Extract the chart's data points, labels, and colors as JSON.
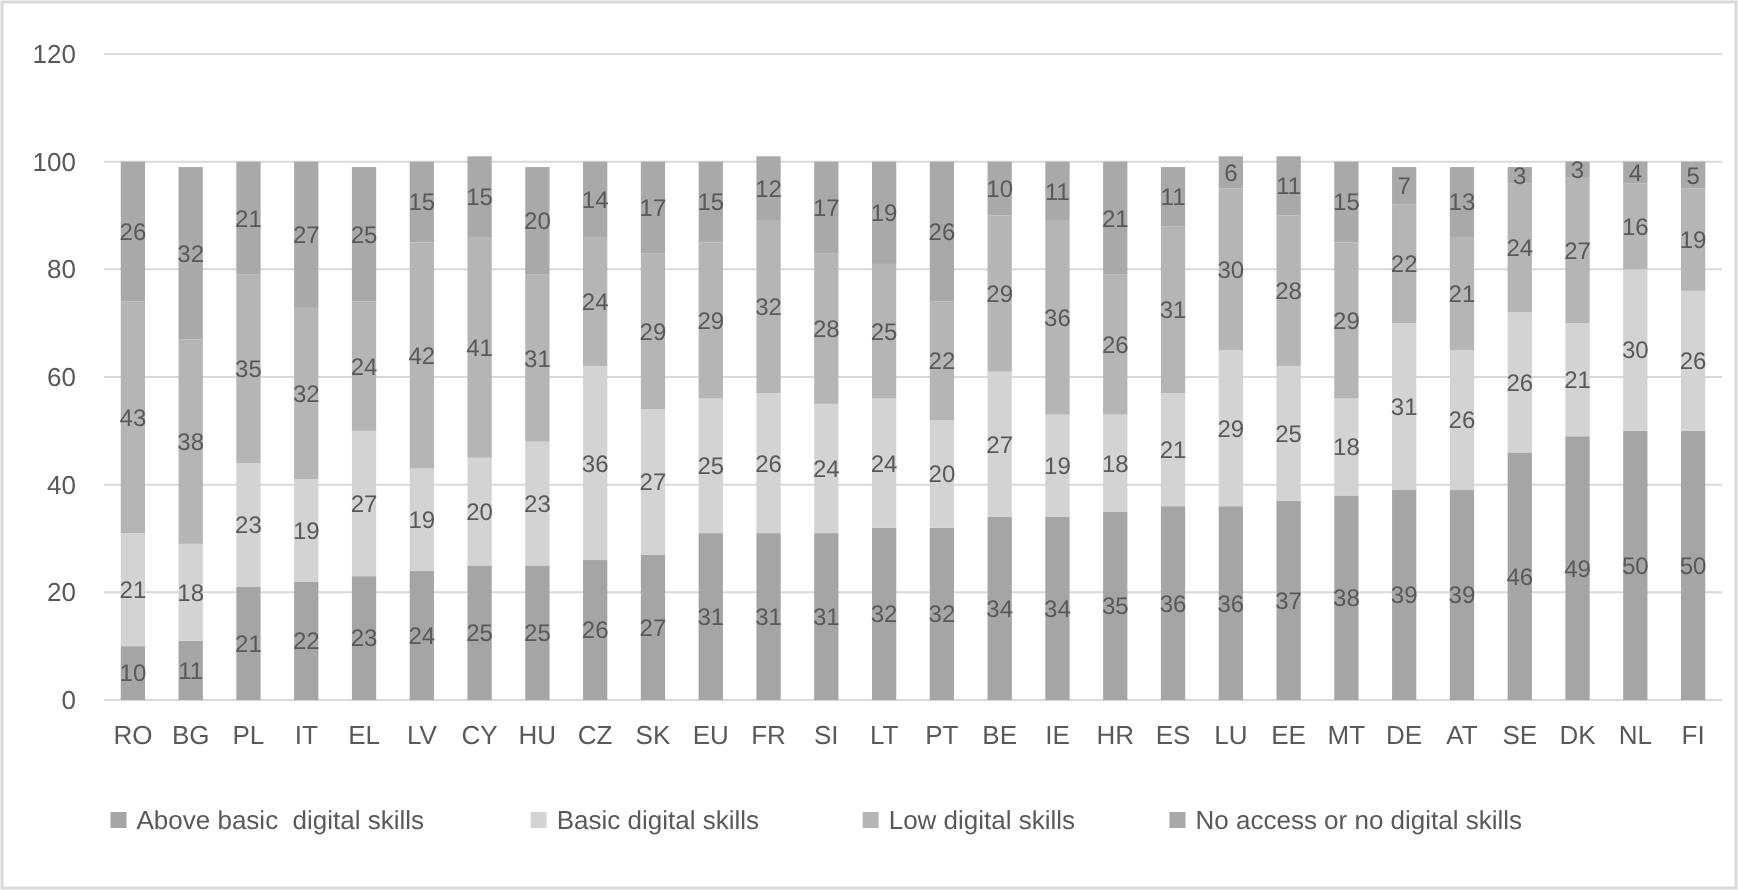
{
  "chart_data": {
    "type": "bar",
    "stacked": true,
    "categories": [
      "RO",
      "BG",
      "PL",
      "IT",
      "EL",
      "LV",
      "CY",
      "HU",
      "CZ",
      "SK",
      "EU",
      "FR",
      "SI",
      "LT",
      "PT",
      "BE",
      "IE",
      "HR",
      "ES",
      "LU",
      "EE",
      "MT",
      "DE",
      "AT",
      "SE",
      "DK",
      "NL",
      "FI"
    ],
    "series": [
      {
        "name": "Above basic  digital skills",
        "color": "#a5a5a5",
        "values": [
          10,
          11,
          21,
          22,
          23,
          24,
          25,
          25,
          26,
          27,
          31,
          31,
          31,
          32,
          32,
          34,
          34,
          35,
          36,
          36,
          37,
          38,
          39,
          39,
          46,
          49,
          50,
          50
        ]
      },
      {
        "name": "Basic digital skills",
        "color": "#d3d3d3",
        "values": [
          21,
          18,
          23,
          19,
          27,
          19,
          20,
          23,
          36,
          27,
          25,
          26,
          24,
          24,
          20,
          27,
          19,
          18,
          21,
          29,
          25,
          18,
          31,
          26,
          26,
          21,
          30,
          26
        ]
      },
      {
        "name": "Low digital skills",
        "color": "#b5b5b5",
        "values": [
          43,
          38,
          35,
          32,
          24,
          42,
          41,
          31,
          24,
          29,
          29,
          32,
          28,
          25,
          22,
          29,
          36,
          26,
          31,
          30,
          28,
          29,
          22,
          21,
          24,
          27,
          16,
          19
        ]
      },
      {
        "name": "No access or no digital skills",
        "color": "#a9a9a9",
        "values": [
          26,
          32,
          21,
          27,
          25,
          15,
          15,
          20,
          14,
          17,
          15,
          12,
          17,
          19,
          26,
          10,
          11,
          21,
          11,
          6,
          11,
          15,
          7,
          13,
          3,
          3,
          4,
          5
        ]
      }
    ],
    "ylim": [
      0,
      120
    ],
    "yticks": [
      0,
      20,
      40,
      60,
      80,
      100,
      120
    ],
    "grid": "y",
    "legend": "bottom",
    "data_labels": true
  }
}
